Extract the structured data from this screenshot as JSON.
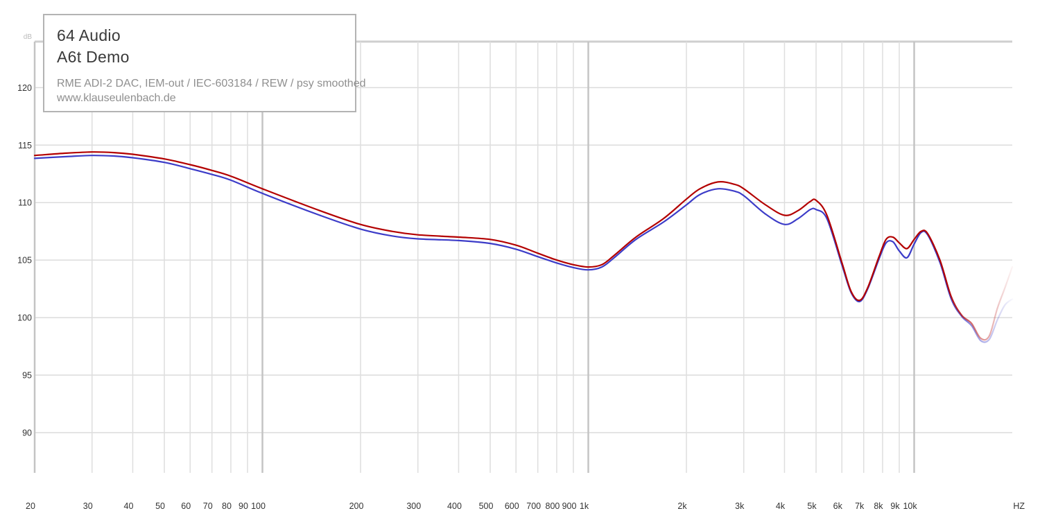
{
  "chart_data": {
    "type": "line",
    "title": "64 Audio",
    "subtitle": "A6t Demo",
    "notes": [
      "RME ADI-2 DAC, IEM-out / IEC-603184 / REW / psy smoothed",
      "www.klauseulenbach.de"
    ],
    "ylabel": "dB",
    "xlabel": "HZ",
    "x_scale": "log",
    "xlim": [
      20,
      20000
    ],
    "ylim": [
      86.5,
      124
    ],
    "y_ticks": [
      90,
      95,
      100,
      105,
      110,
      115,
      120
    ],
    "x_ticks": [
      20,
      30,
      40,
      50,
      60,
      70,
      80,
      90,
      100,
      200,
      300,
      400,
      500,
      600,
      700,
      800,
      900,
      1000,
      2000,
      3000,
      4000,
      5000,
      6000,
      7000,
      8000,
      9000,
      10000
    ],
    "x_tick_labels": [
      "20",
      "30",
      "40",
      "50",
      "60",
      "70",
      "80",
      "90",
      "100",
      "200",
      "300",
      "400",
      "500",
      "600",
      "700",
      "800",
      "900",
      "1k",
      "2k",
      "3k",
      "4k",
      "5k",
      "6k",
      "7k",
      "8k",
      "9k",
      "10k"
    ],
    "grid": true,
    "series": [
      {
        "color": "#b30000",
        "x": [
          20,
          25,
          30,
          35,
          40,
          50,
          60,
          70,
          80,
          100,
          150,
          200,
          250,
          300,
          400,
          500,
          600,
          700,
          800,
          900,
          1000,
          1100,
          1200,
          1400,
          1700,
          2000,
          2200,
          2500,
          2800,
          3000,
          3500,
          4000,
          4400,
          4800,
          5000,
          5400,
          6000,
          6400,
          6800,
          7200,
          7800,
          8200,
          8600,
          9000,
          9500,
          10000,
          10500,
          11000,
          12000,
          13000,
          14000,
          15000,
          16000,
          17000,
          18000,
          19000,
          20000
        ],
        "y": [
          114.1,
          114.3,
          114.4,
          114.35,
          114.2,
          113.8,
          113.3,
          112.8,
          112.3,
          111.2,
          109.3,
          108.1,
          107.5,
          107.2,
          107.0,
          106.8,
          106.3,
          105.6,
          105.0,
          104.6,
          104.4,
          104.6,
          105.4,
          107.0,
          108.6,
          110.3,
          111.2,
          111.8,
          111.6,
          111.2,
          109.8,
          108.9,
          109.3,
          110.1,
          110.2,
          108.9,
          104.8,
          102.3,
          101.5,
          102.6,
          105.3,
          106.8,
          107.0,
          106.5,
          106.0,
          106.8,
          107.5,
          107.3,
          105.0,
          101.8,
          100.2,
          99.5,
          98.2,
          98.4,
          100.8,
          102.6,
          104.4
        ]
      },
      {
        "color": "#3c3cc8",
        "x": [
          20,
          25,
          30,
          35,
          40,
          50,
          60,
          70,
          80,
          100,
          150,
          200,
          250,
          300,
          400,
          500,
          600,
          700,
          800,
          900,
          1000,
          1100,
          1200,
          1400,
          1700,
          2000,
          2200,
          2500,
          2800,
          3000,
          3500,
          4000,
          4400,
          4800,
          5000,
          5400,
          6000,
          6400,
          6800,
          7200,
          7800,
          8200,
          8600,
          9000,
          9500,
          10000,
          10500,
          11000,
          12000,
          13000,
          14000,
          15000,
          16000,
          17000,
          18000,
          19000,
          20000
        ],
        "y": [
          113.85,
          114.0,
          114.1,
          114.05,
          113.9,
          113.5,
          112.95,
          112.45,
          111.95,
          110.8,
          108.9,
          107.7,
          107.1,
          106.85,
          106.7,
          106.45,
          105.95,
          105.3,
          104.75,
          104.35,
          104.15,
          104.4,
          105.2,
          106.8,
          108.3,
          109.8,
          110.7,
          111.2,
          111.0,
          110.6,
          109.0,
          108.1,
          108.6,
          109.4,
          109.4,
          108.6,
          104.6,
          102.2,
          101.4,
          102.5,
          105.1,
          106.5,
          106.6,
          105.8,
          105.2,
          106.4,
          107.4,
          107.2,
          104.8,
          101.6,
          100.1,
          99.3,
          98.0,
          98.1,
          99.8,
          101.1,
          101.6
        ]
      }
    ]
  }
}
